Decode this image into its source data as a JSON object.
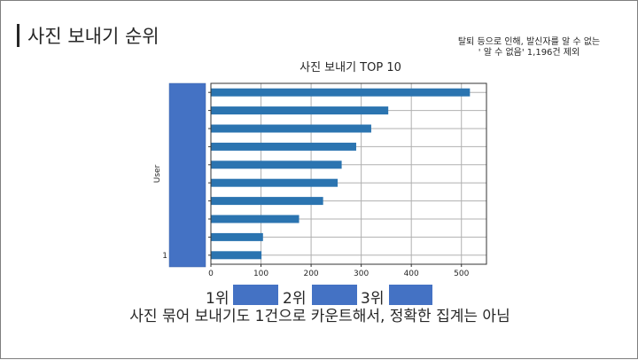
{
  "slide": {
    "title": "사진 보내기 순위",
    "note_line1": "탈퇴 등으로 인해, 발신자를 알 수 없는",
    "note_line2": "' 알 수 없음' 1,196건 제외",
    "ranks": [
      "1위",
      "2위",
      "3위"
    ],
    "footer": "사진 묶어 보내기도 1건으로 카운트해서, 정확한 집계는 아님"
  },
  "chart_data": {
    "type": "bar",
    "orientation": "horizontal",
    "title": "사진 보내기 TOP 10",
    "ylabel": "User",
    "xlabel": "",
    "categories_redacted": true,
    "visible_category_fragment": "1",
    "values": [
      517,
      354,
      320,
      290,
      261,
      253,
      224,
      176,
      104,
      101
    ],
    "xlim": [
      0,
      550
    ],
    "xticks": [
      0,
      100,
      200,
      300,
      400,
      500
    ],
    "grid": true,
    "bar_color": "#2b74b0",
    "redaction_color": "#4472c4"
  }
}
